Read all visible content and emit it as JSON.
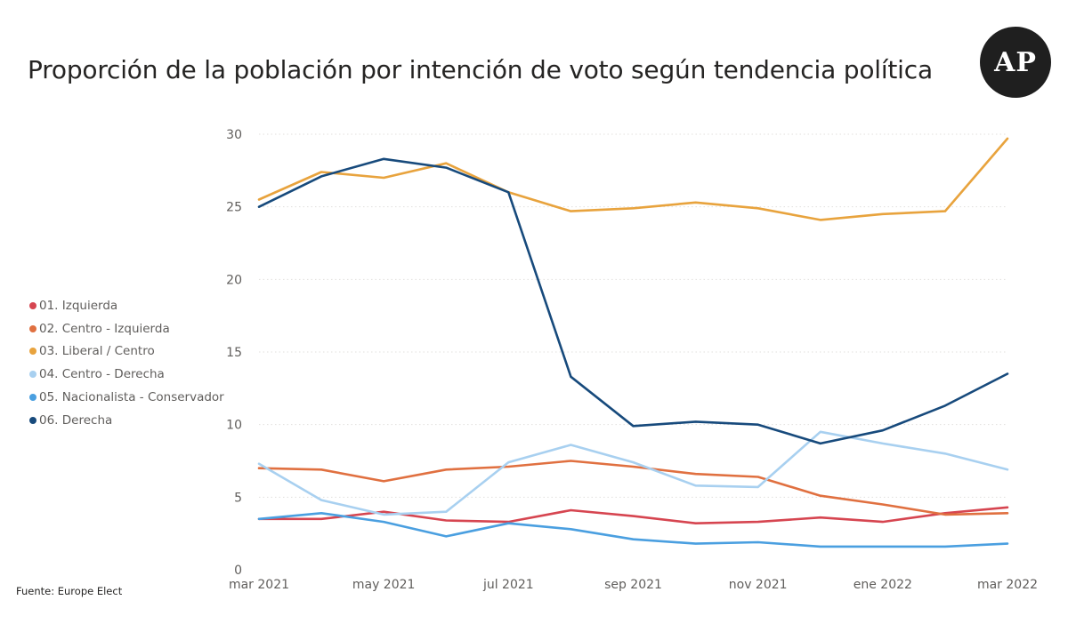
{
  "title": "Proporción de la población por intención de voto según tendencia política",
  "logo": "AP",
  "source": "Fuente: Europe Elect",
  "colors": {
    "background": "#ffffff",
    "grid": "#e1dfdd",
    "tick_text": "#605e5c",
    "logo_bg": "#1f1f1f"
  },
  "chart_data": {
    "type": "line",
    "title": "Proporción de la población por intención de voto según tendencia política",
    "xlabel": "",
    "ylabel": "",
    "x": [
      "mar 2021",
      "abr 2021",
      "may 2021",
      "jun 2021",
      "jul 2021",
      "ago 2021",
      "sep 2021",
      "oct 2021",
      "nov 2021",
      "dic 2021",
      "ene 2022",
      "feb 2022",
      "mar 2022"
    ],
    "x_tick_labels": [
      "mar 2021",
      "may 2021",
      "jul 2021",
      "sep 2021",
      "nov 2021",
      "ene 2022",
      "mar 2022"
    ],
    "y_ticks": [
      0,
      5,
      10,
      15,
      20,
      25,
      30
    ],
    "ylim": [
      0,
      30
    ],
    "grid": true,
    "legend_position": "left",
    "series": [
      {
        "name": "01. Izquierda",
        "color": "#d64550",
        "values": [
          3.5,
          3.5,
          4.0,
          3.4,
          3.3,
          4.1,
          3.7,
          3.2,
          3.3,
          3.6,
          3.3,
          3.9,
          4.3
        ]
      },
      {
        "name": "02. Centro - Izquierda",
        "color": "#e07040",
        "values": [
          7.0,
          6.9,
          6.1,
          6.9,
          7.1,
          7.5,
          7.1,
          6.6,
          6.4,
          5.1,
          4.5,
          3.8,
          3.9
        ]
      },
      {
        "name": "03. Liberal / Centro",
        "color": "#e8a33d",
        "values": [
          25.5,
          27.4,
          27.0,
          28.0,
          26.0,
          24.7,
          24.9,
          25.3,
          24.9,
          24.1,
          24.5,
          24.7,
          29.7
        ]
      },
      {
        "name": "04. Centro - Derecha",
        "color": "#a8d0f0",
        "values": [
          7.3,
          4.8,
          3.8,
          4.0,
          7.4,
          8.6,
          7.4,
          5.8,
          5.7,
          9.5,
          8.7,
          8.0,
          6.9
        ]
      },
      {
        "name": "05. Nacionalista - Conservador",
        "color": "#4a9fe0",
        "values": [
          3.5,
          3.9,
          3.3,
          2.3,
          3.2,
          2.8,
          2.1,
          1.8,
          1.9,
          1.6,
          1.6,
          1.6,
          1.8
        ]
      },
      {
        "name": "06. Derecha",
        "color": "#174a7c",
        "values": [
          25.0,
          27.1,
          28.3,
          27.7,
          26.0,
          13.3,
          9.9,
          10.2,
          10.0,
          8.7,
          9.6,
          11.3,
          13.5
        ]
      }
    ]
  }
}
